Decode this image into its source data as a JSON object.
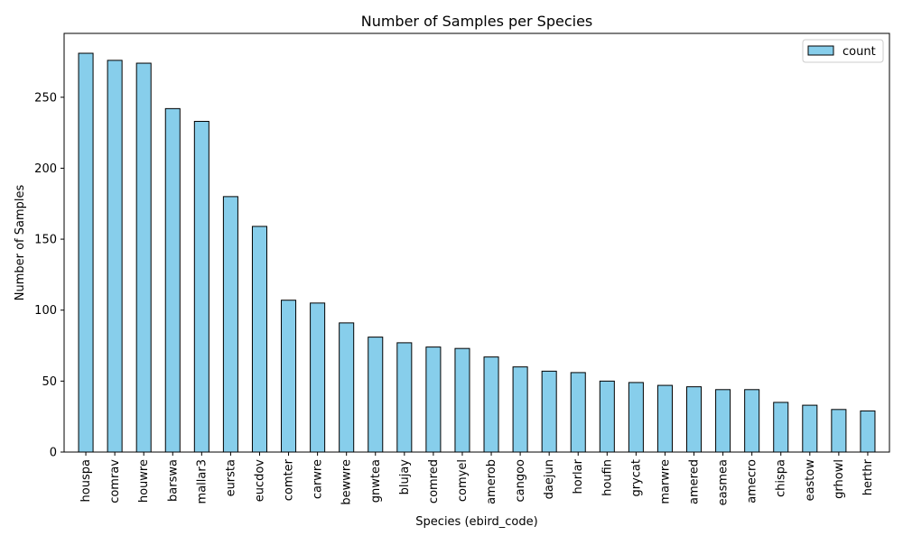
{
  "chart_data": {
    "type": "bar",
    "title": "Number of Samples per Species",
    "xlabel": "Species (ebird_code)",
    "ylabel": "Number of Samples",
    "categories": [
      "houspa",
      "comrav",
      "houwre",
      "barswa",
      "mallar3",
      "eursta",
      "eucdov",
      "comter",
      "carwre",
      "bewwre",
      "gnwtea",
      "blujay",
      "comred",
      "comyel",
      "amerob",
      "cangoo",
      "daejun",
      "horlar",
      "houfin",
      "grycat",
      "marwre",
      "amered",
      "easmea",
      "amecro",
      "chispa",
      "eastow",
      "grhowl",
      "herthr"
    ],
    "series": [
      {
        "name": "count",
        "values": [
          281,
          276,
          274,
          242,
          233,
          180,
          159,
          107,
          105,
          91,
          81,
          77,
          74,
          73,
          67,
          60,
          57,
          56,
          50,
          49,
          47,
          46,
          44,
          44,
          35,
          33,
          30,
          29
        ]
      }
    ],
    "ylim": [
      0,
      295
    ],
    "yticks": [
      0,
      50,
      100,
      150,
      200,
      250
    ],
    "grid": false,
    "legend_position": "top-right",
    "colors": {
      "bar_fill": "#87ceeb",
      "bar_edge": "#000000"
    }
  }
}
